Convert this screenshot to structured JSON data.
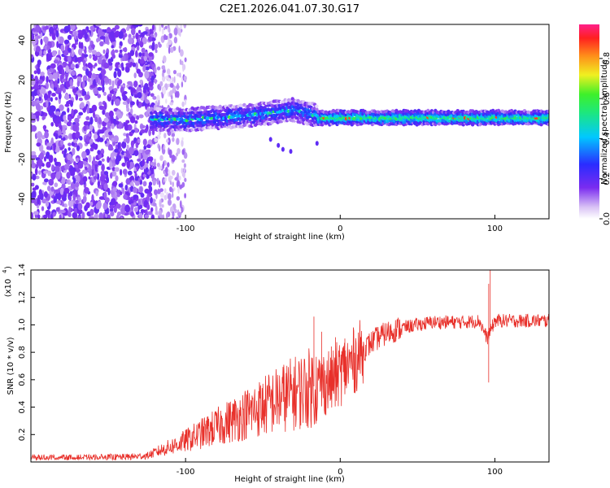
{
  "title": "C2E1.2026.041.07.30.G17",
  "chart_data": [
    {
      "type": "heatmap",
      "name": "spectrogram",
      "xlabel": "Height of straight line (km)",
      "ylabel": "Frequency (Hz)",
      "xlim": [
        -200,
        135
      ],
      "ylim": [
        -50,
        48
      ],
      "x_ticks": [
        "-100",
        "0",
        "100"
      ],
      "y_ticks": [
        "-40",
        "-20",
        "0",
        "20",
        "40"
      ],
      "colorbar": {
        "label": "Normalized spectral amplitude",
        "range": [
          0.0,
          0.97
        ],
        "ticks": [
          "0.0",
          "0.2",
          "0.4",
          "0.6",
          "0.8"
        ]
      },
      "regions": [
        {
          "x_range": [
            -200,
            -120
          ],
          "description": "noise",
          "amplitude": 0.15
        },
        {
          "x_range": [
            -120,
            -15
          ],
          "center_freq_hz": [
            0,
            0,
            1,
            3,
            5,
            4
          ],
          "amplitude": 0.45
        },
        {
          "x_range": [
            -15,
            135
          ],
          "center_freq_hz": 1,
          "amplitude": 0.6
        }
      ]
    },
    {
      "type": "line",
      "name": "snr",
      "xlabel": "Height of straight line (km)",
      "ylabel": "SNR (10 * v/v)",
      "y_scale_label": "(x10",
      "y_scale_exp": "4",
      "xlim": [
        -200,
        135
      ],
      "ylim": [
        0,
        14000
      ],
      "x_ticks": [
        "-100",
        "0",
        "100"
      ],
      "y_ticks": [
        "0.2",
        "0.4",
        "0.6",
        "0.8",
        "1.0",
        "1.2",
        "1.4"
      ],
      "series": [
        {
          "name": "SNR",
          "color": "#e8302a",
          "x": [
            -200,
            -180,
            -160,
            -140,
            -125,
            -115,
            -105,
            -95,
            -85,
            -75,
            -65,
            -55,
            -45,
            -35,
            -25,
            -15,
            -10,
            -5,
            0,
            5,
            10,
            15,
            20,
            25,
            30,
            40,
            50,
            60,
            70,
            80,
            90,
            95,
            100,
            110,
            120,
            135
          ],
          "y": [
            300,
            300,
            300,
            350,
            450,
            900,
            1300,
            1800,
            2300,
            2800,
            3300,
            3800,
            4300,
            4800,
            5200,
            5600,
            5800,
            6000,
            6500,
            7000,
            7500,
            8200,
            8700,
            9100,
            9400,
            9800,
            10000,
            10200,
            10200,
            10200,
            10300,
            9000,
            10300,
            10300,
            10300,
            10300
          ],
          "spikes": [
            [
              -17,
              10600
            ],
            [
              -12,
              9500
            ],
            [
              -3,
              9100
            ],
            [
              3,
              9000
            ],
            [
              97,
              14200
            ],
            [
              96,
              5800
            ],
            [
              96,
              13000
            ]
          ]
        }
      ]
    }
  ]
}
